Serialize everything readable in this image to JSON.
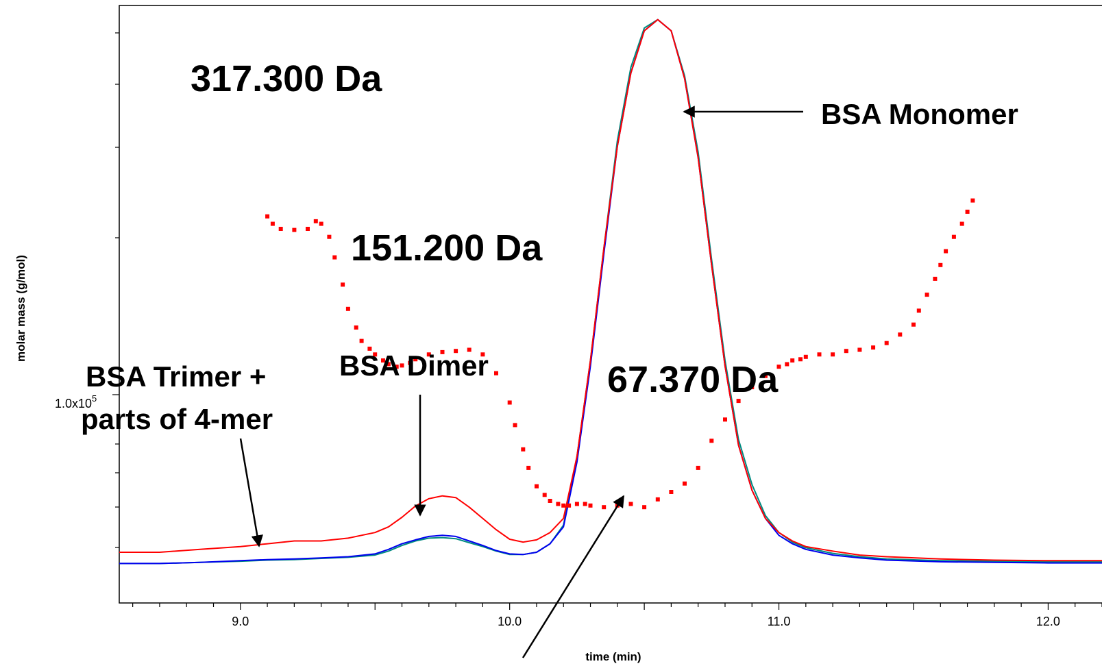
{
  "chart_data": {
    "type": "line",
    "title": "",
    "xlabel": "time (min)",
    "ylabel": "molar mass (g/mol)",
    "x_ticks": [
      9.0,
      10.0,
      11.0,
      12.0
    ],
    "x_tick_labels": [
      "9.0",
      "10.0",
      "11.0",
      "12.0"
    ],
    "y_tick_label": {
      "base": "1.0x10",
      "exp": "5"
    },
    "xlim": [
      8.55,
      12.2
    ],
    "ylim": [
      -0.06,
      1.0
    ],
    "y_scale": "log",
    "grid": false,
    "colors": {
      "red": "#ff0000",
      "blue": "#0000ee",
      "green": "#008b80",
      "arrow": "#000000"
    },
    "series": [
      {
        "name": "",
        "color": "#ff0000",
        "x": [
          8.55,
          8.7,
          8.85,
          9.0,
          9.1,
          9.2,
          9.3,
          9.4,
          9.5,
          9.55,
          9.6,
          9.65,
          9.7,
          9.75,
          9.8,
          9.85,
          9.9,
          9.95,
          10.0,
          10.05,
          10.1,
          10.15,
          10.2,
          10.25,
          10.3,
          10.35,
          10.4,
          10.45,
          10.5,
          10.55,
          10.6,
          10.65,
          10.7,
          10.75,
          10.8,
          10.85,
          10.9,
          10.95,
          11.0,
          11.05,
          11.1,
          11.2,
          11.3,
          11.4,
          11.6,
          11.8,
          12.0,
          12.2
        ],
        "y": [
          0.03,
          0.03,
          0.035,
          0.04,
          0.045,
          0.05,
          0.05,
          0.055,
          0.065,
          0.075,
          0.092,
          0.112,
          0.125,
          0.13,
          0.127,
          0.11,
          0.09,
          0.07,
          0.053,
          0.048,
          0.052,
          0.065,
          0.09,
          0.2,
          0.37,
          0.57,
          0.75,
          0.88,
          0.955,
          0.975,
          0.955,
          0.87,
          0.73,
          0.54,
          0.36,
          0.22,
          0.14,
          0.09,
          0.065,
          0.05,
          0.04,
          0.032,
          0.025,
          0.022,
          0.018,
          0.016,
          0.015,
          0.015
        ]
      },
      {
        "name": "",
        "color": "#0000ee",
        "x": [
          8.55,
          8.7,
          8.85,
          9.0,
          9.1,
          9.2,
          9.3,
          9.4,
          9.5,
          9.55,
          9.6,
          9.65,
          9.7,
          9.75,
          9.8,
          9.85,
          9.9,
          9.95,
          10.0,
          10.05,
          10.1,
          10.15,
          10.2,
          10.25,
          10.3,
          10.35,
          10.4,
          10.45,
          10.5,
          10.55,
          10.6,
          10.65,
          10.7,
          10.75,
          10.8,
          10.85,
          10.9,
          10.95,
          11.0,
          11.05,
          11.1,
          11.2,
          11.3,
          11.4,
          11.6,
          11.8,
          12.0,
          12.2
        ],
        "y": [
          0.01,
          0.01,
          0.012,
          0.015,
          0.017,
          0.018,
          0.02,
          0.022,
          0.027,
          0.035,
          0.045,
          0.052,
          0.058,
          0.06,
          0.058,
          0.05,
          0.042,
          0.033,
          0.027,
          0.026,
          0.03,
          0.045,
          0.075,
          0.19,
          0.36,
          0.56,
          0.75,
          0.88,
          0.955,
          0.975,
          0.955,
          0.87,
          0.73,
          0.54,
          0.36,
          0.22,
          0.14,
          0.09,
          0.06,
          0.045,
          0.035,
          0.025,
          0.02,
          0.016,
          0.013,
          0.012,
          0.011,
          0.011
        ]
      },
      {
        "name": "",
        "color": "#008b80",
        "x": [
          8.55,
          8.7,
          8.85,
          9.0,
          9.1,
          9.2,
          9.3,
          9.4,
          9.5,
          9.55,
          9.6,
          9.65,
          9.7,
          9.75,
          9.8,
          9.85,
          9.9,
          9.95,
          10.0,
          10.05,
          10.1,
          10.15,
          10.2,
          10.25,
          10.3,
          10.35,
          10.4,
          10.45,
          10.5,
          10.55,
          10.6,
          10.65,
          10.7,
          10.75,
          10.8,
          10.85,
          10.9,
          10.95,
          11.0,
          11.05,
          11.1,
          11.2,
          11.3,
          11.4,
          11.6,
          11.8,
          12.0,
          12.2
        ],
        "y": [
          0.01,
          0.01,
          0.012,
          0.014,
          0.016,
          0.017,
          0.019,
          0.021,
          0.025,
          0.032,
          0.042,
          0.05,
          0.055,
          0.056,
          0.054,
          0.047,
          0.04,
          0.032,
          0.026,
          0.026,
          0.03,
          0.045,
          0.078,
          0.2,
          0.37,
          0.57,
          0.76,
          0.89,
          0.96,
          0.975,
          0.955,
          0.875,
          0.74,
          0.55,
          0.37,
          0.23,
          0.15,
          0.095,
          0.065,
          0.048,
          0.038,
          0.028,
          0.022,
          0.018,
          0.015,
          0.014,
          0.013,
          0.013
        ]
      }
    ],
    "scatter_series": {
      "name": "",
      "color": "#ff0000",
      "x": [
        9.1,
        9.12,
        9.15,
        9.2,
        9.25,
        9.28,
        9.3,
        9.33,
        9.35,
        9.38,
        9.4,
        9.43,
        9.45,
        9.48,
        9.5,
        9.53,
        9.55,
        9.58,
        9.6,
        9.63,
        9.65,
        9.7,
        9.75,
        9.8,
        9.85,
        9.9,
        9.95,
        10.0,
        10.02,
        10.05,
        10.07,
        10.1,
        10.13,
        10.15,
        10.18,
        10.2,
        10.22,
        10.25,
        10.28,
        10.3,
        10.35,
        10.4,
        10.45,
        10.5,
        10.55,
        10.6,
        10.65,
        10.7,
        10.75,
        10.8,
        10.85,
        10.9,
        10.95,
        11.0,
        11.03,
        11.05,
        11.08,
        11.1,
        11.15,
        11.2,
        11.25,
        11.3,
        11.35,
        11.4,
        11.45,
        11.5,
        11.52,
        11.55,
        11.58,
        11.6,
        11.62,
        11.65,
        11.68,
        11.7,
        11.72
      ],
      "y": [
        3.2,
        3.05,
        2.95,
        2.93,
        2.95,
        3.1,
        3.05,
        2.8,
        2.45,
        2.05,
        1.75,
        1.55,
        1.42,
        1.35,
        1.3,
        1.25,
        1.22,
        1.2,
        1.21,
        1.23,
        1.26,
        1.3,
        1.32,
        1.33,
        1.34,
        1.3,
        1.15,
        0.95,
        0.82,
        0.7,
        0.62,
        0.55,
        0.52,
        0.5,
        0.49,
        0.485,
        0.485,
        0.49,
        0.49,
        0.485,
        0.48,
        0.485,
        0.49,
        0.48,
        0.505,
        0.53,
        0.56,
        0.62,
        0.74,
        0.85,
        0.96,
        1.05,
        1.13,
        1.2,
        1.22,
        1.25,
        1.26,
        1.28,
        1.3,
        1.3,
        1.33,
        1.34,
        1.36,
        1.4,
        1.48,
        1.58,
        1.73,
        1.92,
        2.13,
        2.33,
        2.55,
        2.8,
        3.05,
        3.3,
        3.55
      ]
    },
    "annotations": [
      {
        "id": "a317",
        "text": "317.300 Da"
      },
      {
        "id": "a151",
        "text": "151.200 Da"
      },
      {
        "id": "a67",
        "text": "67.370 Da"
      },
      {
        "id": "monomer",
        "text": "BSA Monomer"
      },
      {
        "id": "dimer",
        "text": "BSA Dimer"
      },
      {
        "id": "trimer1",
        "text": "BSA Trimer +"
      },
      {
        "id": "trimer2",
        "text": "parts of 4-mer"
      }
    ]
  }
}
